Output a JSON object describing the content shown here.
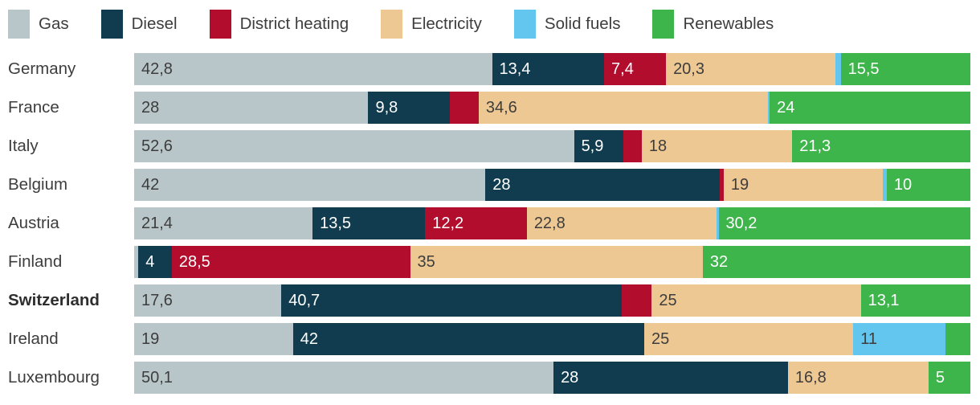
{
  "legend": {
    "items": [
      {
        "label": "Gas",
        "color": "#b9c6c9",
        "text": "dark"
      },
      {
        "label": "Diesel",
        "color": "#113c4f",
        "text": "light"
      },
      {
        "label": "District heating",
        "color": "#b30d2e",
        "text": "light"
      },
      {
        "label": "Electricity",
        "color": "#eec893",
        "text": "dark"
      },
      {
        "label": "Solid fuels",
        "color": "#62c6ee",
        "text": "dark"
      },
      {
        "label": "Renewables",
        "color": "#3eb54b",
        "text": "light"
      }
    ]
  },
  "chart_data": {
    "type": "bar",
    "orientation": "horizontal",
    "stacked": true,
    "unit": "percent share",
    "title": "",
    "xlabel": "",
    "ylabel": "",
    "legend_position": "top",
    "series_names": [
      "Gas",
      "Diesel",
      "District heating",
      "Electricity",
      "Solid fuels",
      "Renewables"
    ],
    "rows": [
      {
        "country": "Germany",
        "bold": false,
        "values": [
          42.8,
          13.4,
          7.4,
          20.3,
          0.6,
          15.5
        ],
        "labels": [
          "42,8",
          "13,4",
          "7,4",
          "20,3",
          "",
          "15,5"
        ]
      },
      {
        "country": "France",
        "bold": false,
        "values": [
          28,
          9.8,
          3.4,
          34.6,
          0.2,
          24
        ],
        "labels": [
          "28",
          "9,8",
          "",
          "34,6",
          "",
          "24"
        ]
      },
      {
        "country": "Italy",
        "bold": false,
        "values": [
          52.6,
          5.9,
          2.2,
          18,
          0,
          21.3
        ],
        "labels": [
          "52,6",
          "5,9",
          "",
          "18",
          "",
          "21,3"
        ]
      },
      {
        "country": "Belgium",
        "bold": false,
        "values": [
          42,
          28,
          0.5,
          19,
          0.5,
          10
        ],
        "labels": [
          "42",
          "28",
          "",
          "19",
          "",
          "10"
        ]
      },
      {
        "country": "Austria",
        "bold": false,
        "values": [
          21.4,
          13.5,
          12.2,
          22.8,
          0.2,
          30.2
        ],
        "labels": [
          "21,4",
          "13,5",
          "12,2",
          "22,8",
          "",
          "30,2"
        ]
      },
      {
        "country": "Finland",
        "bold": false,
        "values": [
          0.5,
          4,
          28.5,
          35,
          0,
          32
        ],
        "labels": [
          "",
          "4",
          "28,5",
          "35",
          "",
          "32"
        ]
      },
      {
        "country": "Switzerland",
        "bold": true,
        "values": [
          17.6,
          40.7,
          3.6,
          25,
          0,
          13.1
        ],
        "labels": [
          "17,6",
          "40,7",
          "",
          "25",
          "",
          "13,1"
        ]
      },
      {
        "country": "Ireland",
        "bold": false,
        "values": [
          19,
          42,
          0,
          25,
          11,
          3
        ],
        "labels": [
          "19",
          "42",
          "",
          "25",
          "11",
          ""
        ]
      },
      {
        "country": "Luxembourg",
        "bold": false,
        "values": [
          50.1,
          28,
          0,
          16.8,
          0,
          5
        ],
        "labels": [
          "50,1",
          "28",
          "",
          "16,8",
          "",
          "5"
        ]
      }
    ]
  }
}
